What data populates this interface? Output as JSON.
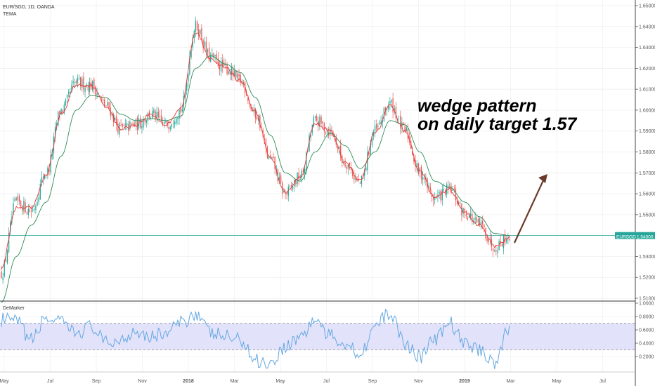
{
  "header": {
    "symbol_line": "EUR/SGD, 1D, OANDA",
    "indicator": "TEMA"
  },
  "annotation": {
    "line1": "wedge pattern",
    "line2": "on daily target 1.57"
  },
  "price_tag": {
    "symbol": "EURSGD",
    "value": "1.54000"
  },
  "colors": {
    "up": "#26a69a",
    "down": "#ef5350",
    "tema": "#e53935",
    "ma": "#2e8b57",
    "demarker": "#64a8e0",
    "band": "#e3e2fb",
    "arrow": "#6b3a2a",
    "price_line": "#26a69a"
  },
  "chart_data": [
    {
      "type": "line",
      "title": "EUR/SGD, 1D, OANDA",
      "xlabel": "",
      "ylabel": "",
      "x_ticks": [
        "May",
        "Jul",
        "Sep",
        "Nov",
        "2018",
        "Mar",
        "May",
        "Jul",
        "Sep",
        "Nov",
        "2019",
        "Mar",
        "May",
        "Jul"
      ],
      "y_ticks": [
        "1.65000",
        "1.64000",
        "1.63000",
        "1.62000",
        "1.61000",
        "1.60000",
        "1.59000",
        "1.58000",
        "1.57000",
        "1.56000",
        "1.55000",
        "1.54000",
        "1.53000",
        "1.52000",
        "1.51000"
      ],
      "ylim": [
        1.51,
        1.65
      ],
      "last_price": 1.54,
      "x_index_range": [
        0,
        340
      ],
      "series": [
        {
          "kind": "candles",
          "x": [
            0,
            10,
            20,
            30,
            40,
            50,
            60,
            70,
            80,
            90,
            100,
            110,
            120,
            130,
            140,
            150,
            160,
            170,
            180,
            190,
            200,
            210,
            220,
            230,
            240,
            250,
            260,
            270,
            280,
            290,
            300,
            310,
            320,
            330,
            340
          ],
          "close": [
            1.522,
            1.556,
            1.552,
            1.57,
            1.6,
            1.613,
            1.612,
            1.602,
            1.591,
            1.593,
            1.598,
            1.593,
            1.6,
            1.64,
            1.625,
            1.62,
            1.614,
            1.598,
            1.576,
            1.56,
            1.568,
            1.595,
            1.59,
            1.575,
            1.565,
            1.59,
            1.603,
            1.59,
            1.57,
            1.558,
            1.562,
            1.551,
            1.545,
            1.535,
            1.54
          ]
        },
        {
          "kind": "tema",
          "x": [
            0,
            10,
            20,
            30,
            40,
            50,
            60,
            70,
            80,
            90,
            100,
            110,
            120,
            130,
            140,
            150,
            160,
            170,
            180,
            190,
            200,
            210,
            220,
            230,
            240,
            250,
            260,
            270,
            280,
            290,
            300,
            310,
            320,
            330,
            340
          ],
          "y": [
            1.525,
            1.553,
            1.553,
            1.569,
            1.598,
            1.612,
            1.612,
            1.602,
            1.591,
            1.593,
            1.598,
            1.593,
            1.601,
            1.637,
            1.625,
            1.62,
            1.614,
            1.599,
            1.577,
            1.561,
            1.568,
            1.594,
            1.59,
            1.575,
            1.566,
            1.589,
            1.602,
            1.59,
            1.571,
            1.558,
            1.562,
            1.551,
            1.545,
            1.535,
            1.539
          ]
        },
        {
          "kind": "ma",
          "x": [
            0,
            10,
            20,
            30,
            40,
            50,
            60,
            70,
            80,
            90,
            100,
            110,
            120,
            130,
            140,
            150,
            160,
            170,
            180,
            190,
            200,
            210,
            220,
            230,
            240,
            250,
            260,
            270,
            280,
            290,
            300,
            310,
            320,
            330,
            340
          ],
          "y": [
            1.508,
            1.53,
            1.545,
            1.556,
            1.578,
            1.6,
            1.607,
            1.606,
            1.598,
            1.595,
            1.596,
            1.595,
            1.597,
            1.62,
            1.626,
            1.622,
            1.618,
            1.606,
            1.588,
            1.57,
            1.566,
            1.58,
            1.589,
            1.583,
            1.572,
            1.58,
            1.595,
            1.593,
            1.58,
            1.566,
            1.563,
            1.556,
            1.549,
            1.541,
            1.54
          ]
        }
      ]
    },
    {
      "type": "line",
      "title": "DeMarker",
      "xlabel": "",
      "ylabel": "",
      "y_ticks": [
        "1.0000",
        "0.8000",
        "0.6000",
        "0.4000",
        "0.2000"
      ],
      "ylim": [
        0.0,
        1.0
      ],
      "band": [
        0.3,
        0.7
      ],
      "series": [
        {
          "name": "DeMarker",
          "x": [
            0,
            10,
            20,
            30,
            40,
            50,
            60,
            70,
            80,
            90,
            100,
            110,
            120,
            130,
            140,
            150,
            160,
            170,
            180,
            190,
            200,
            210,
            220,
            230,
            240,
            250,
            260,
            270,
            280,
            290,
            300,
            310,
            320,
            330,
            340
          ],
          "y": [
            0.75,
            0.72,
            0.45,
            0.78,
            0.7,
            0.55,
            0.65,
            0.4,
            0.45,
            0.6,
            0.5,
            0.55,
            0.7,
            0.85,
            0.55,
            0.5,
            0.45,
            0.15,
            0.1,
            0.35,
            0.5,
            0.75,
            0.5,
            0.4,
            0.25,
            0.65,
            0.85,
            0.4,
            0.2,
            0.45,
            0.7,
            0.4,
            0.3,
            0.12,
            0.62
          ]
        }
      ]
    }
  ]
}
